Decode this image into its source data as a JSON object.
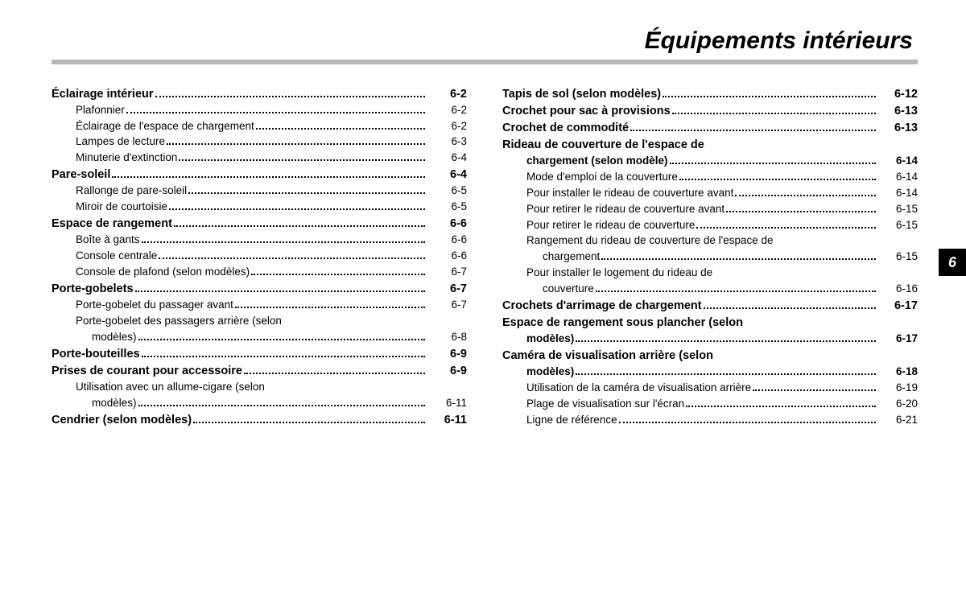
{
  "title": "Équipements intérieurs",
  "chapter_tab": "6",
  "colors": {
    "rule": "#b7b7b7",
    "text": "#000000",
    "tab_bg": "#000000",
    "tab_fg": "#ffffff"
  },
  "left_col": [
    {
      "label": "Éclairage intérieur",
      "page": "6-2",
      "level": 0
    },
    {
      "label": "Plafonnier",
      "page": "6-2",
      "level": 1
    },
    {
      "label": "Éclairage de l'espace de chargement",
      "page": "6-2",
      "level": 1
    },
    {
      "label": "Lampes de lecture",
      "page": "6-3",
      "level": 1
    },
    {
      "label": "Minuterie d'extinction",
      "page": "6-4",
      "level": 1
    },
    {
      "label": "Pare-soleil",
      "page": "6-4",
      "level": 0
    },
    {
      "label": "Rallonge de pare-soleil",
      "page": "6-5",
      "level": 1
    },
    {
      "label": "Miroir de courtoisie",
      "page": "6-5",
      "level": 1
    },
    {
      "label": "Espace de rangement",
      "page": "6-6",
      "level": 0
    },
    {
      "label": "Boîte à gants",
      "page": "6-6",
      "level": 1
    },
    {
      "label": "Console centrale",
      "page": "6-6",
      "level": 1
    },
    {
      "label": "Console de plafond (selon modèles)",
      "page": "6-7",
      "level": 1
    },
    {
      "label": "Porte-gobelets",
      "page": "6-7",
      "level": 0
    },
    {
      "label": "Porte-gobelet du passager avant",
      "page": "6-7",
      "level": 1
    },
    {
      "label": "Porte-gobelet des passagers arrière (selon",
      "level": 1,
      "nopg": true
    },
    {
      "label": "modèles)",
      "page": "6-8",
      "level": 2
    },
    {
      "label": "Porte-bouteilles",
      "page": "6-9",
      "level": 0
    },
    {
      "label": "Prises de courant pour accessoire",
      "page": "6-9",
      "level": 0
    },
    {
      "label": "Utilisation avec un allume-cigare (selon",
      "level": 1,
      "nopg": true
    },
    {
      "label": "modèles)",
      "page": "6-11",
      "level": 2
    },
    {
      "label": "Cendrier (selon modèles)",
      "page": "6-11",
      "level": 0
    }
  ],
  "right_col": [
    {
      "label": "Tapis de sol (selon modèles)",
      "page": "6-12",
      "level": 0
    },
    {
      "label": "Crochet pour sac à provisions",
      "page": "6-13",
      "level": 0
    },
    {
      "label": "Crochet de commodité",
      "page": "6-13",
      "level": 0
    },
    {
      "label": "Rideau de couverture de l'espace de",
      "level": 0,
      "nopg": true
    },
    {
      "label": "chargement (selon modèle)",
      "page": "6-14",
      "level": 0,
      "cont": true
    },
    {
      "label": "Mode d'emploi de la couverture",
      "page": "6-14",
      "level": 1
    },
    {
      "label": "Pour installer le rideau de couverture avant",
      "page": "6-14",
      "level": 1
    },
    {
      "label": "Pour retirer le rideau de couverture avant",
      "page": "6-15",
      "level": 1
    },
    {
      "label": "Pour retirer le rideau de couverture",
      "page": "6-15",
      "level": 1
    },
    {
      "label": "Rangement du rideau de couverture de l'espace de",
      "level": 1,
      "nopg": true
    },
    {
      "label": "chargement",
      "page": "6-15",
      "level": 2
    },
    {
      "label": "Pour installer le logement du rideau de",
      "level": 1,
      "nopg": true
    },
    {
      "label": "couverture",
      "page": "6-16",
      "level": 2
    },
    {
      "label": "Crochets d'arrimage de chargement",
      "page": "6-17",
      "level": 0
    },
    {
      "label": "Espace de rangement sous plancher (selon",
      "level": 0,
      "nopg": true
    },
    {
      "label": "modèles)",
      "page": "6-17",
      "level": 0,
      "cont": true
    },
    {
      "label": "Caméra de visualisation arrière (selon",
      "level": 0,
      "nopg": true
    },
    {
      "label": "modèles)",
      "page": "6-18",
      "level": 0,
      "cont": true
    },
    {
      "label": "Utilisation de la caméra de visualisation arrière",
      "page": "6-19",
      "level": 1
    },
    {
      "label": "Plage de visualisation sur l'écran",
      "page": "6-20",
      "level": 1
    },
    {
      "label": "Ligne de référence",
      "page": "6-21",
      "level": 1
    }
  ]
}
